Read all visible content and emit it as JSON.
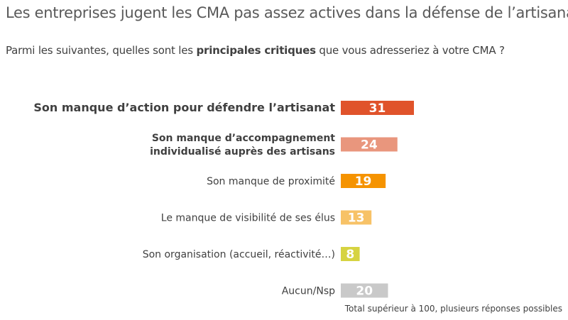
{
  "title": "Les entreprises jugent les CMA pas assez actives dans la défense de l’artisanat",
  "subtitle": {
    "before": "Parmi les suivantes, quelles sont les ",
    "bold": "principales critiques",
    "after": " que vous adresseriez à votre CMA ?"
  },
  "footnote": "Total supérieur à 100, plusieurs réponses possibles",
  "chart_data": {
    "type": "bar",
    "orientation": "horizontal",
    "title": "Les entreprises jugent les CMA pas assez actives dans la défense de l’artisanat",
    "xlabel": "",
    "ylabel": "",
    "grid": false,
    "legend": "none",
    "xlim": [
      0,
      31
    ],
    "categories": [
      [
        "Son manque d’action pour défendre l’artisanat"
      ],
      [
        "Son manque d’accompagnement",
        "individualisé auprès des artisans"
      ],
      [
        "Son manque de proximité"
      ],
      [
        "Le manque de visibilité de ses élus"
      ],
      [
        "Son organisation (accueil, réactivité…)"
      ],
      [
        "Aucun/Nsp"
      ]
    ],
    "values": [
      31,
      24,
      19,
      13,
      8,
      20
    ],
    "colors": [
      "#e0532b",
      "#e9967d",
      "#f59300",
      "#f7c267",
      "#d6d341",
      "#c9c9c9"
    ],
    "bold_labels": [
      true,
      true,
      false,
      false,
      false,
      false
    ]
  }
}
